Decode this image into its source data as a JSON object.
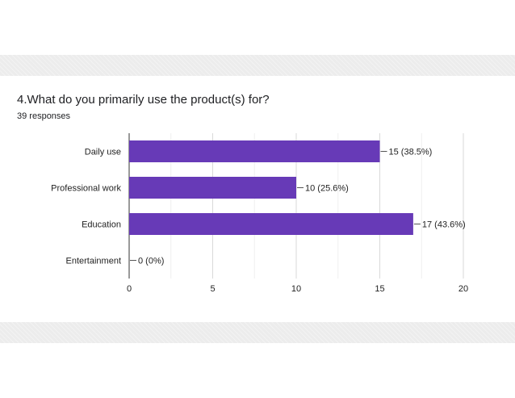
{
  "question": {
    "title": "4.What do you primarily use the product(s) for?",
    "responses": "39 responses"
  },
  "chart_data": {
    "type": "bar",
    "orientation": "horizontal",
    "categories": [
      "Daily use",
      "Professional work",
      "Education",
      "Entertainment"
    ],
    "values": [
      15,
      10,
      17,
      0
    ],
    "value_labels": [
      "15 (38.5%)",
      "10 (25.6%)",
      "17 (43.6%)",
      "0 (0%)"
    ],
    "xlim": [
      0,
      20
    ],
    "xticks": [
      0,
      5,
      10,
      15,
      20
    ],
    "grid": true,
    "bar_color": "#673ab7"
  }
}
